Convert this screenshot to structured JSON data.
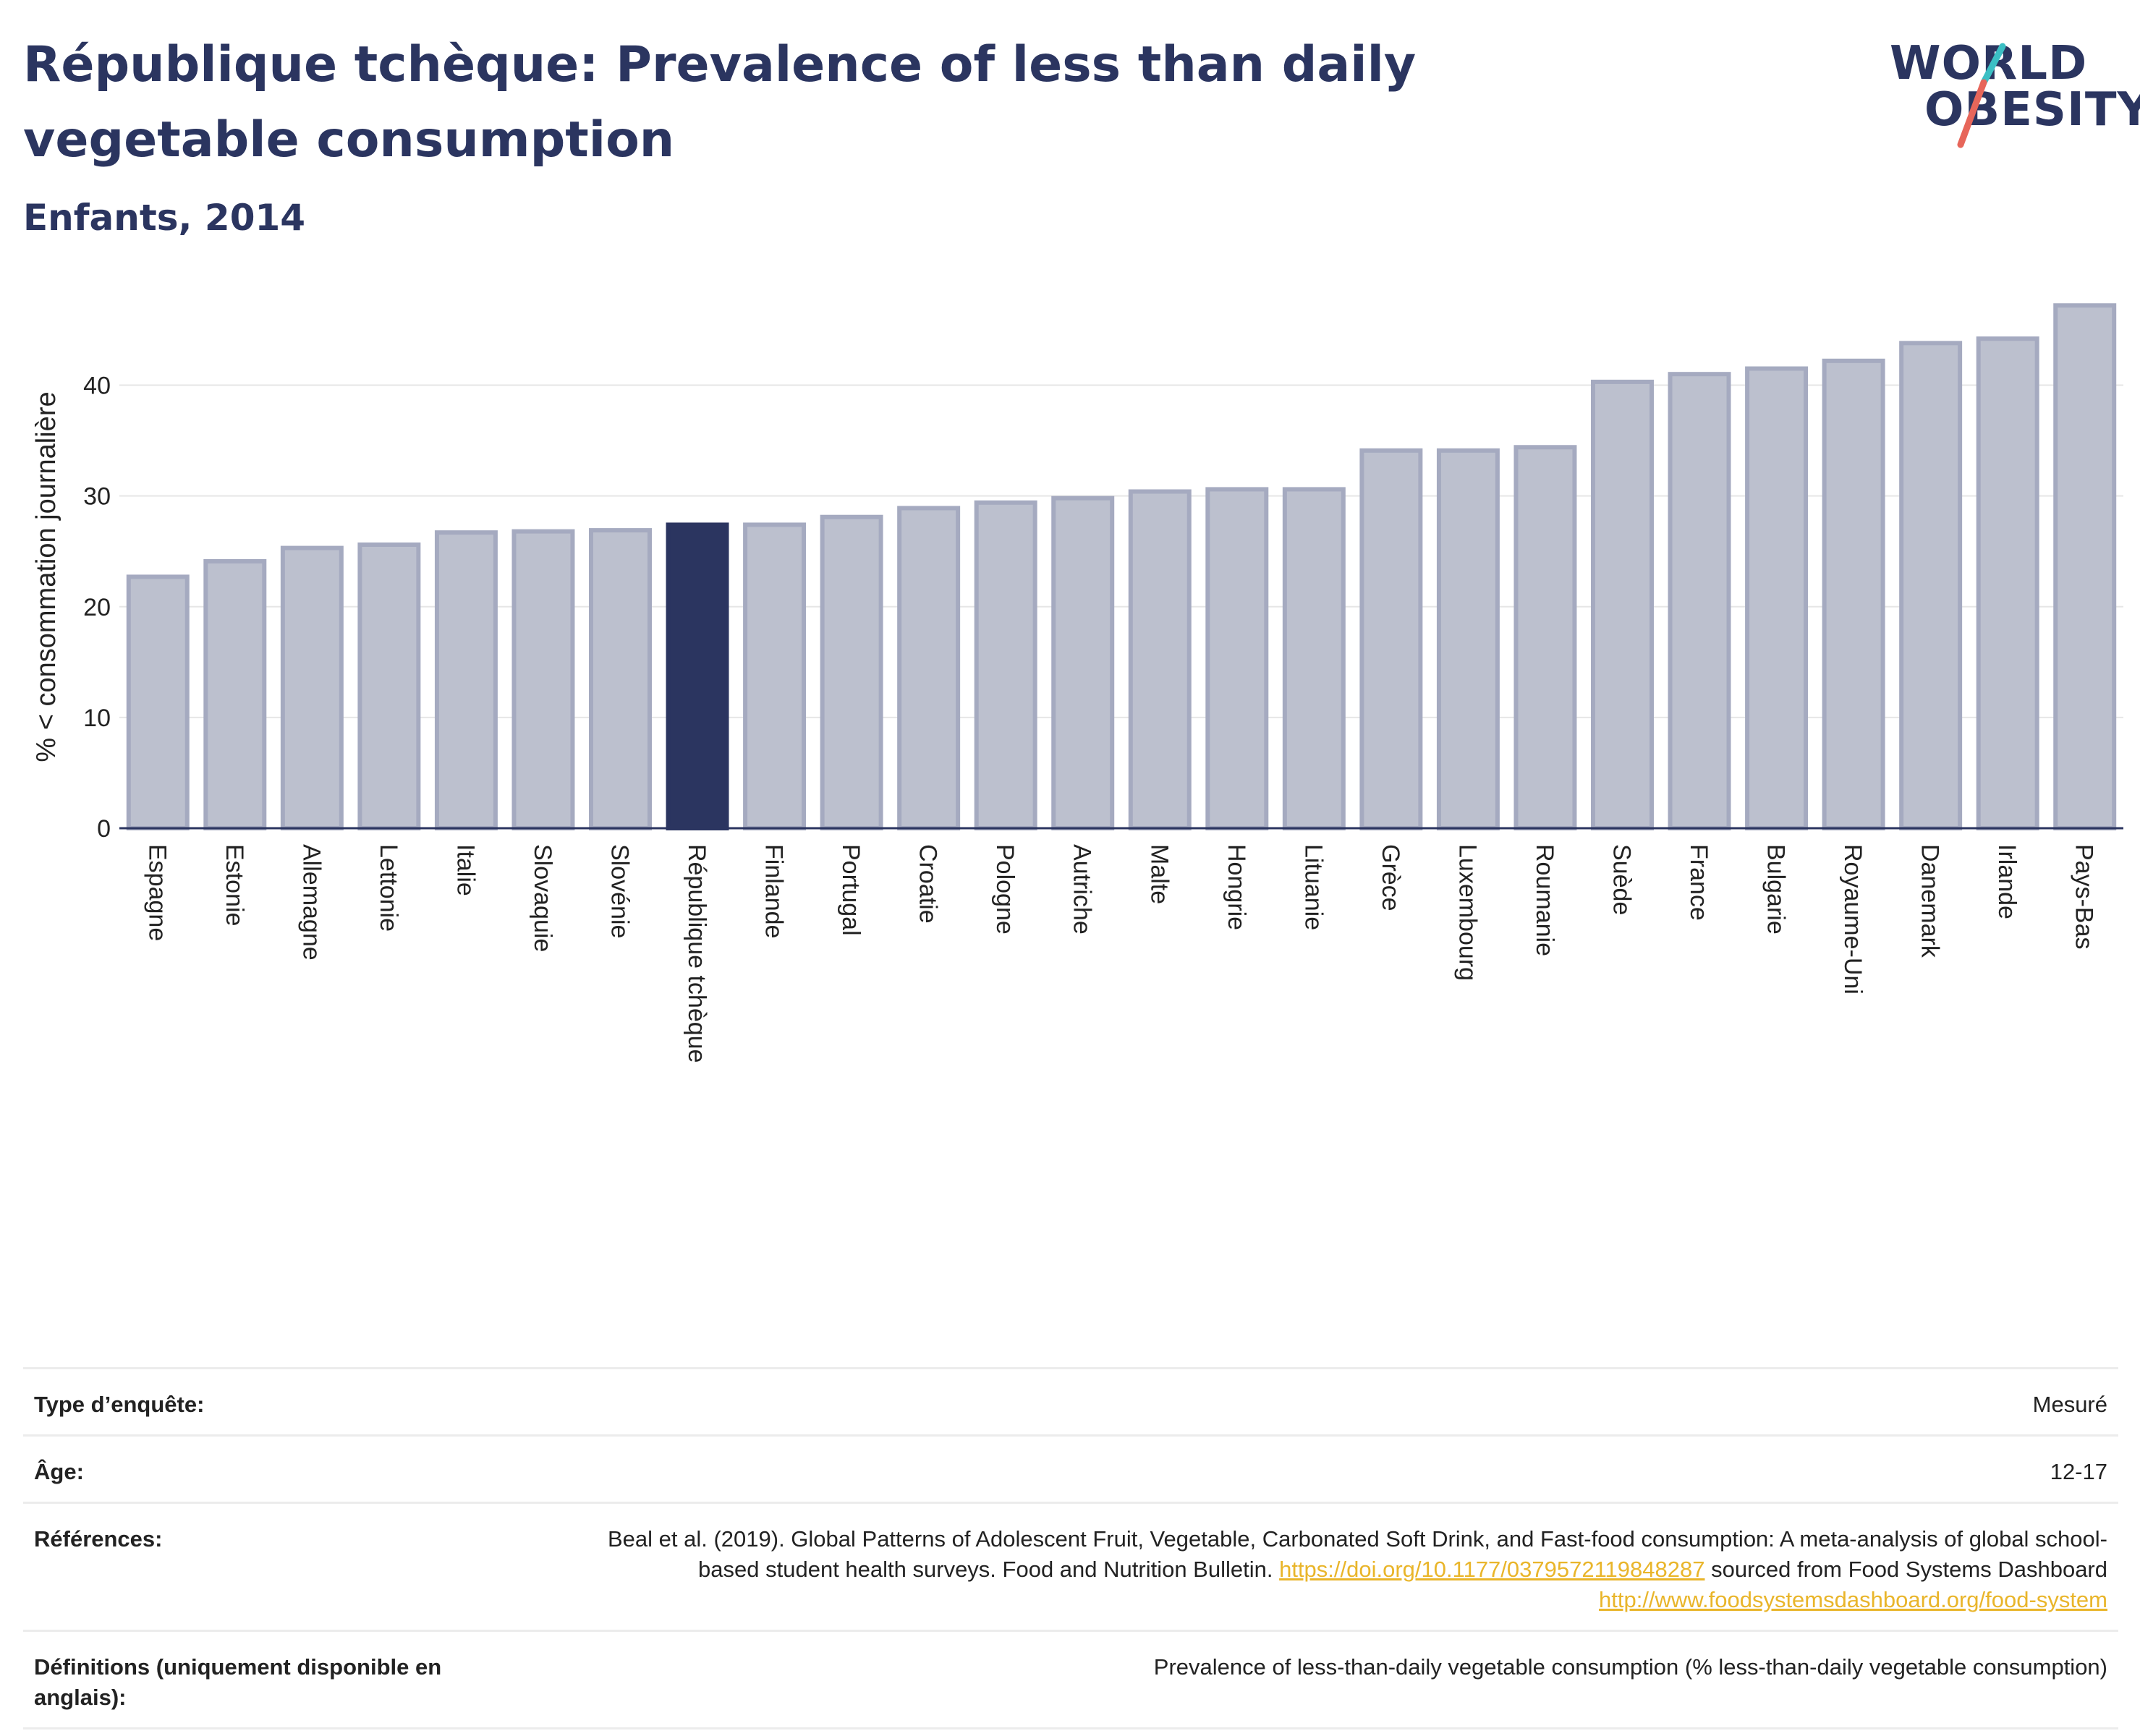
{
  "header": {
    "title": "République tchèque: Prevalence of less than daily vegetable consumption",
    "subtitle": "Enfants, 2014"
  },
  "logo": {
    "line1": "WORLD",
    "line2": "OBESITY",
    "colors": {
      "text": "#2b3560",
      "slash_top": "#3bbfc4",
      "slash_bottom": "#e7665a"
    }
  },
  "colors": {
    "bar": "#bcc0ce",
    "bar_border": "#a5aac0",
    "highlight": "#2b3560",
    "grid": "#e6e6e6",
    "axis": "#2b3560"
  },
  "chart_data": {
    "type": "bar",
    "ylabel": "% < consommation journalière",
    "xlabel": "",
    "ylim": [
      0,
      48
    ],
    "yticks": [
      0,
      10,
      20,
      30,
      40
    ],
    "grid": true,
    "highlight": "République tchèque",
    "categories": [
      "Espagne",
      "Estonie",
      "Allemagne",
      "Lettonie",
      "Italie",
      "Slovaquie",
      "Slovénie",
      "République tchèque",
      "Finlande",
      "Portugal",
      "Croatie",
      "Pologne",
      "Autriche",
      "Malte",
      "Hongrie",
      "Lituanie",
      "Grèce",
      "Luxembourg",
      "Roumanie",
      "Suède",
      "France",
      "Bulgarie",
      "Royaume-Uni",
      "Danemark",
      "Irlande",
      "Pays-Bas"
    ],
    "values": [
      22.7,
      24.1,
      25.3,
      25.6,
      26.7,
      26.8,
      26.9,
      27.4,
      27.4,
      28.1,
      28.9,
      29.4,
      29.8,
      30.4,
      30.6,
      30.6,
      34.1,
      34.1,
      34.4,
      40.3,
      41.0,
      41.5,
      42.2,
      43.8,
      44.2,
      47.2
    ]
  },
  "meta": {
    "rows": [
      {
        "label": "Type d’enquête:",
        "value": "Mesuré"
      },
      {
        "label": "Âge:",
        "value": "12-17"
      },
      {
        "label": "Références:",
        "value_text1": "Beal et al. (2019). Global Patterns of Adolescent Fruit, Vegetable, Carbonated Soft Drink, and Fast-food consumption: A meta-analysis of global school-based student health surveys. Food and Nutrition Bulletin.",
        "link1": "https://doi.org/10.1177/0379572119848287",
        "value_text2": "sourced from Food Systems Dashboard",
        "link2": "http://www.foodsystemsdashboard.org/food-system"
      },
      {
        "label": "Définitions (uniquement disponible en anglais):",
        "value": "Prevalence of less-than-daily vegetable consumption (% less-than-daily vegetable consumption)"
      }
    ]
  }
}
